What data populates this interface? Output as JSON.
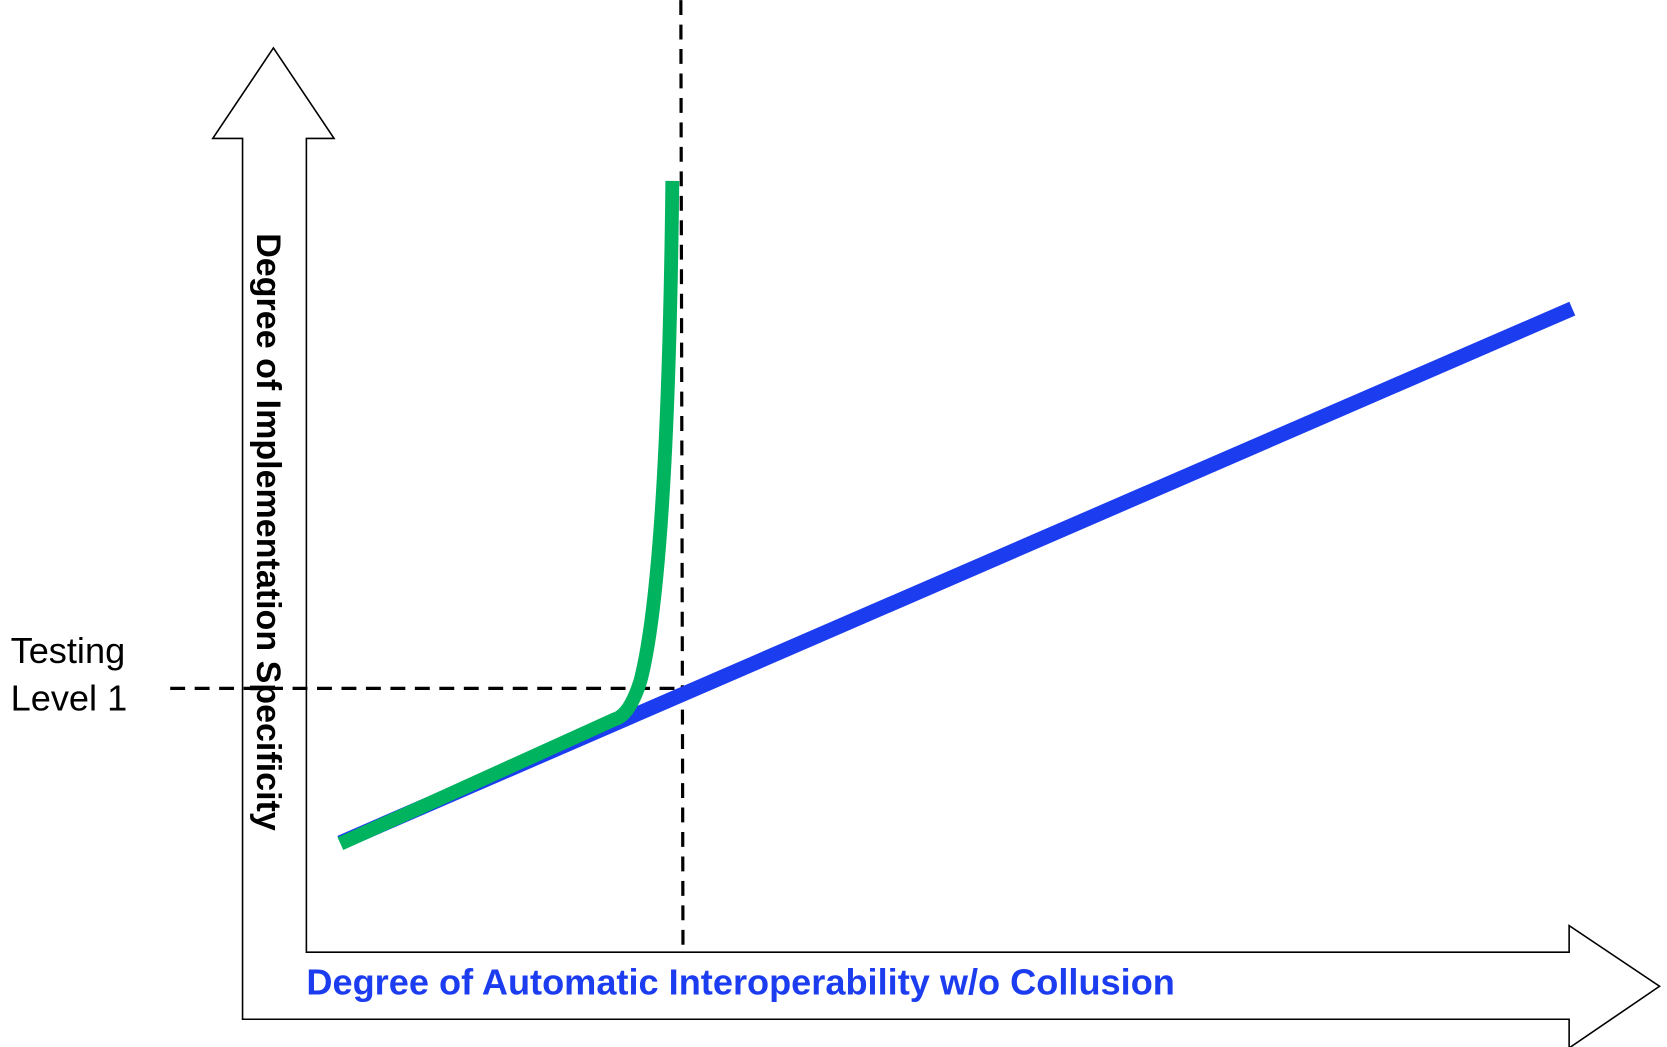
{
  "y_axis_label": "Degree of Implementation Specificity",
  "x_axis_label": "Degree of Automatic Interoperability w/o Collusion",
  "annotation": [
    "Testing",
    "Level 1"
  ]
}
